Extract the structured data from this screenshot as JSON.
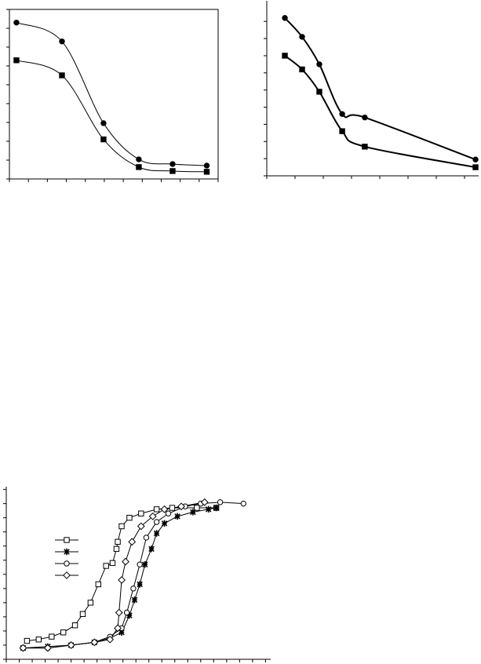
{
  "chart_data": [
    {
      "type": "line",
      "smooth": true,
      "frame": true,
      "xlim": [
        0,
        11
      ],
      "xticks": [
        0,
        1,
        2,
        3,
        4,
        5,
        6,
        7,
        8,
        9,
        10,
        11
      ],
      "ylim": [
        0,
        9
      ],
      "yticks": [
        0,
        1,
        2,
        3,
        4,
        5,
        6,
        7,
        8,
        9
      ],
      "series": [
        {
          "color": "#000000",
          "marker": "circle",
          "filled": true,
          "x": [
            0.37,
            2.77,
            4.96,
            6.82,
            8.6,
            10.4
          ],
          "values": [
            8.3,
            7.3,
            2.96,
            1.04,
            0.79,
            0.71
          ]
        },
        {
          "color": "#000000",
          "marker": "square",
          "filled": true,
          "x": [
            0.37,
            2.77,
            4.96,
            6.82,
            8.6,
            10.4
          ],
          "values": [
            6.3,
            5.5,
            2.1,
            0.63,
            0.42,
            0.38
          ]
        }
      ]
    },
    {
      "type": "line",
      "smooth": true,
      "frame": false,
      "xlim": [
        0,
        7.5
      ],
      "xticks": [
        0,
        1,
        2,
        3,
        4,
        5,
        6,
        7
      ],
      "ylim": [
        0,
        10.2
      ],
      "yticks": [
        0,
        1,
        2,
        3,
        4,
        5,
        6,
        7,
        8,
        9
      ],
      "series": [
        {
          "color": "#000000",
          "marker": "circle",
          "filled": true,
          "x": [
            0.64,
            1.25,
            1.86,
            2.67,
            3.47,
            7.39
          ],
          "values": [
            9.2,
            8.1,
            6.5,
            3.6,
            3.4,
            0.95
          ]
        },
        {
          "color": "#000000",
          "marker": "square",
          "filled": true,
          "x": [
            0.64,
            1.25,
            1.86,
            2.67,
            3.47,
            7.39
          ],
          "values": [
            7.0,
            6.2,
            4.9,
            2.6,
            1.7,
            0.5
          ]
        }
      ]
    },
    {
      "type": "line",
      "smooth": false,
      "frame": false,
      "legend": true,
      "xlim": [
        0,
        20.4
      ],
      "xticks": [
        0,
        1,
        2,
        3,
        4,
        5,
        6,
        7,
        8,
        9,
        10,
        11,
        12,
        13,
        14,
        15,
        16,
        17,
        18,
        19,
        20
      ],
      "ylim": [
        0,
        12.2
      ],
      "yticks": [
        0,
        1,
        2,
        3,
        4,
        5,
        6,
        7,
        8,
        9,
        10,
        11,
        12
      ],
      "series": [
        {
          "color": "#000000",
          "marker": "square",
          "filled": false,
          "x": [
            1.6,
            2.5,
            3.5,
            4.4,
            5.3,
            5.9,
            6.5,
            7.1,
            7.7,
            8.2,
            8.5,
            8.6,
            8.9,
            9.5,
            10.4,
            11.6,
            12.8,
            14.7,
            16.2
          ],
          "values": [
            1.3,
            1.4,
            1.6,
            1.9,
            2.4,
            3.2,
            4.0,
            5.3,
            6.6,
            6.8,
            7.8,
            8.3,
            9.4,
            10.0,
            10.3,
            10.6,
            10.7,
            10.7,
            10.7
          ]
        },
        {
          "color": "#000000",
          "marker": "star",
          "filled": true,
          "x": [
            1.3,
            3.2,
            5.0,
            6.8,
            8.0,
            8.9,
            9.5,
            9.9,
            10.3,
            10.7,
            11.2,
            11.6,
            12.2,
            13.2,
            14.4,
            15.6,
            16.2
          ],
          "values": [
            0.8,
            0.9,
            1.0,
            1.2,
            1.5,
            1.9,
            3.1,
            4.2,
            5.3,
            6.7,
            7.8,
            8.9,
            9.6,
            10.1,
            10.4,
            10.6,
            10.7
          ]
        },
        {
          "color": "#000000",
          "marker": "circle",
          "filled": false,
          "x": [
            1.3,
            3.2,
            5.0,
            6.8,
            8.0,
            8.9,
            9.3,
            9.8,
            10.3,
            10.8,
            11.6,
            12.5,
            13.8,
            15.0,
            16.5,
            18.3
          ],
          "values": [
            0.8,
            0.8,
            1.0,
            1.2,
            1.6,
            2.2,
            3.3,
            5.0,
            6.7,
            8.6,
            9.7,
            10.3,
            10.8,
            11.0,
            11.1,
            11.0
          ]
        },
        {
          "color": "#000000",
          "marker": "diamond",
          "filled": false,
          "x": [
            1.3,
            3.2,
            5.0,
            6.8,
            8.0,
            8.6,
            8.7,
            8.9,
            9.2,
            9.7,
            10.4,
            11.3,
            12.2,
            13.5,
            15.3
          ],
          "values": [
            0.8,
            0.8,
            1.0,
            1.2,
            1.4,
            2.2,
            3.3,
            5.6,
            6.9,
            8.3,
            9.4,
            10.1,
            10.6,
            10.8,
            11.1
          ]
        }
      ]
    }
  ]
}
